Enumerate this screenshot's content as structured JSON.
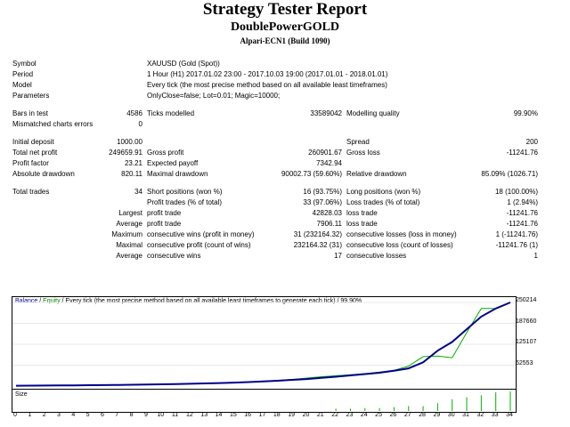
{
  "report": {
    "title": "Strategy Tester Report",
    "subtitle": "DoublePowerGOLD",
    "build": "Alpari-ECN1 (Build 1090)"
  },
  "info": {
    "symbol_label": "Symbol",
    "symbol_value": "XAUUSD (Gold (Spot))",
    "period_label": "Period",
    "period_value": "1 Hour (H1) 2017.01.02 23:00 - 2017.10.03 19:00 (2017.01.01 - 2018.01.01)",
    "model_label": "Model",
    "model_value": "Every tick (the most precise method based on all available least timeframes)",
    "params_label": "Parameters",
    "params_value": "OnlyClose=false; Lot=0.01; Magic=10000;"
  },
  "stats": {
    "bars_label": "Bars in test",
    "bars_value": "4586",
    "ticks_label": "Ticks modelled",
    "ticks_value": "33589042",
    "quality_label": "Modelling quality",
    "quality_value": "99.90%",
    "mismatch_label": "Mismatched charts errors",
    "mismatch_value": "0",
    "deposit_label": "Initial deposit",
    "deposit_value": "1000.00",
    "spread_label": "Spread",
    "spread_value": "200",
    "netprofit_label": "Total net profit",
    "netprofit_value": "249659.91",
    "grossprofit_label": "Gross profit",
    "grossprofit_value": "260901.67",
    "grossloss_label": "Gross loss",
    "grossloss_value": "-11241.76",
    "pf_label": "Profit factor",
    "pf_value": "23.21",
    "payoff_label": "Expected payoff",
    "payoff_value": "7342.94",
    "absdd_label": "Absolute drawdown",
    "absdd_value": "820.11",
    "maxdd_label": "Maximal drawdown",
    "maxdd_value": "90002.73 (59.60%)",
    "reldd_label": "Relative drawdown",
    "reldd_value": "85.09% (1026.71)",
    "trades_label": "Total trades",
    "trades_value": "34",
    "short_label": "Short positions (won %)",
    "short_value": "16 (93.75%)",
    "long_label": "Long positions (won %)",
    "long_value": "18 (100.00%)",
    "ptrades_label": "Profit trades (% of total)",
    "ptrades_value": "33 (97.06%)",
    "ltrades_label": "Loss trades (% of total)",
    "ltrades_value": "1 (2.94%)",
    "largest_label": "Largest",
    "largest_profit_label": "profit trade",
    "largest_profit_value": "42828.03",
    "largest_loss_label": "loss trade",
    "largest_loss_value": "-11241.76",
    "average_label": "Average",
    "average_profit_label": "profit trade",
    "average_profit_value": "7906.11",
    "average_loss_label": "loss trade",
    "average_loss_value": "-11241.76",
    "maximum_label": "Maximum",
    "max_wins_label": "consecutive wins (profit in money)",
    "max_wins_value": "31 (232164.32)",
    "max_losses_label": "consecutive losses (loss in money)",
    "max_losses_value": "1 (-11241.76)",
    "maximal_label": "Maximal",
    "maximal_profit_label": "consecutive profit (count of wins)",
    "maximal_profit_value": "232164.32 (31)",
    "maximal_loss_label": "consecutive loss (count of losses)",
    "maximal_loss_value": "-11241.76 (1)",
    "avg2_label": "Average",
    "avg_wins_label": "consecutive wins",
    "avg_wins_value": "17",
    "avg_losses_label": "consecutive losses",
    "avg_losses_value": "1"
  },
  "chart": {
    "legend_balance": "Balance",
    "legend_sep": " / ",
    "legend_equity": "Equity",
    "legend_rest": " / Every tick (the most precise method based on all available least timeframes to generate each tick) / 99.90%",
    "size_label": "Size",
    "yticks": [
      "250214",
      "187660",
      "125107",
      "62553"
    ],
    "xticks": [
      "0",
      "1",
      "2",
      "3",
      "4",
      "5",
      "6",
      "7",
      "8",
      "9",
      "10",
      "11",
      "12",
      "13",
      "14",
      "15",
      "16",
      "17",
      "18",
      "19",
      "20",
      "21",
      "22",
      "23",
      "24",
      "25",
      "26",
      "27",
      "28",
      "29",
      "30",
      "31",
      "32",
      "33",
      "34"
    ],
    "balance_color": "#00008b",
    "equity_color": "#00b000",
    "size_color": "#00b000"
  },
  "chart_data": {
    "type": "line",
    "x": [
      0,
      1,
      2,
      3,
      4,
      5,
      6,
      7,
      8,
      9,
      10,
      11,
      12,
      13,
      14,
      15,
      16,
      17,
      18,
      19,
      20,
      21,
      22,
      23,
      24,
      25,
      26,
      27,
      28,
      29,
      30,
      31,
      32,
      33,
      34
    ],
    "series": [
      {
        "name": "Balance",
        "values": [
          1000,
          1200,
          1500,
          1800,
          2200,
          2600,
          3000,
          3500,
          4000,
          4600,
          5200,
          6000,
          7000,
          8000,
          9000,
          10500,
          12000,
          14000,
          16000,
          18500,
          21000,
          24500,
          28000,
          32000,
          36000,
          40000,
          46000,
          53000,
          71000,
          106000,
          132000,
          170000,
          208000,
          232000,
          250214
        ]
      },
      {
        "name": "Equity",
        "values": [
          1000,
          1200,
          1500,
          1800,
          2200,
          2600,
          3000,
          3500,
          4000,
          4600,
          5200,
          6000,
          7000,
          8000,
          9000,
          10500,
          12000,
          14500,
          17000,
          20000,
          24000,
          28000,
          31000,
          34000,
          37000,
          42000,
          47000,
          60000,
          88000,
          90000,
          85000,
          160000,
          232000,
          232000,
          250214
        ]
      }
    ],
    "size_values": [
      0,
      0,
      0,
      0,
      0,
      0,
      0,
      0,
      0,
      0,
      0,
      0,
      0,
      0,
      0,
      0,
      0,
      0,
      0,
      0,
      0,
      0,
      0.12,
      0.12,
      0.15,
      0.15,
      0.2,
      0.25,
      0.25,
      0.4,
      0.6,
      0.7,
      0.8,
      0.95,
      1.0
    ]
  }
}
